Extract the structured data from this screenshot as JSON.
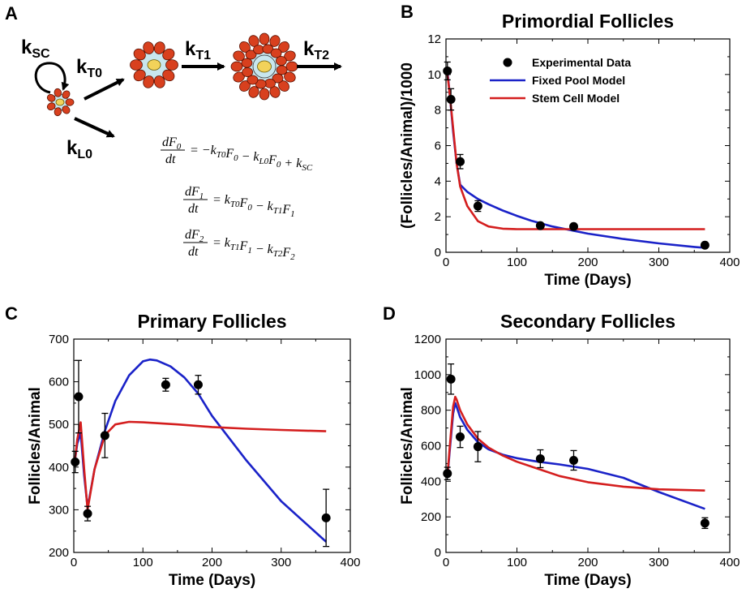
{
  "panel_a": {
    "label": "A",
    "rates": {
      "ksc": {
        "k": "k",
        "sub": "SC"
      },
      "kt0": {
        "k": "k",
        "sub": "T0"
      },
      "kt1": {
        "k": "k",
        "sub": "T1"
      },
      "kt2": {
        "k": "k",
        "sub": "T2"
      },
      "kl0": {
        "k": "k",
        "sub": "L0"
      }
    },
    "equations": [
      {
        "lhs_num": "dF",
        "lhs_sub": "0",
        "lhs_den": "dt",
        "rhs": "= −k_{T0}F_0 − k_{L0}F_0 + k_{SC}"
      },
      {
        "lhs_num": "dF",
        "lhs_sub": "1",
        "lhs_den": "dt",
        "rhs": "= k_{T0}F_0 − k_{T1}F_1"
      },
      {
        "lhs_num": "dF",
        "lhs_sub": "2",
        "lhs_den": "dt",
        "rhs": "= k_{T1}F_1 − k_{T2}F_2"
      }
    ],
    "colors": {
      "granulosa": "#D8401E",
      "oocyte_ring": "#C8E6EE",
      "oocyte": "#F2D25A"
    }
  },
  "chart_data": [
    {
      "panel": "B",
      "type": "line",
      "title": "Primordial Follicles",
      "xlabel": "Time (Days)",
      "ylabel": "(Follicles/Animal)/1000",
      "xlim": [
        0,
        400
      ],
      "ylim": [
        0,
        12
      ],
      "xticks": [
        0,
        100,
        200,
        300,
        400
      ],
      "yticks": [
        0,
        2,
        4,
        6,
        8,
        10,
        12
      ],
      "legend": {
        "placement": "top-right",
        "entries": [
          "Experimental Data",
          "Fixed Pool Model",
          "Stem Cell Model"
        ]
      },
      "experimental": {
        "name": "Experimental Data",
        "x": [
          2,
          7,
          20,
          45,
          133,
          180,
          365
        ],
        "y": [
          10.2,
          8.6,
          5.1,
          2.6,
          1.5,
          1.45,
          0.4
        ],
        "err": [
          0.5,
          0.6,
          0.4,
          0.3,
          0.15,
          0.1,
          0.12
        ]
      },
      "series": [
        {
          "name": "Fixed Pool Model",
          "color": "#1A22C8",
          "x": [
            2,
            5,
            10,
            15,
            20,
            30,
            45,
            60,
            80,
            100,
            120,
            150,
            200,
            250,
            300,
            350,
            365
          ],
          "y": [
            10.2,
            9.0,
            6.8,
            5.0,
            3.8,
            3.4,
            3.0,
            2.7,
            2.35,
            2.05,
            1.78,
            1.45,
            1.05,
            0.75,
            0.5,
            0.3,
            0.25
          ]
        },
        {
          "name": "Stem Cell Model",
          "color": "#D41E1E",
          "x": [
            2,
            5,
            10,
            15,
            20,
            30,
            45,
            60,
            80,
            100,
            130,
            200,
            300,
            365
          ],
          "y": [
            10.0,
            9.0,
            7.0,
            5.0,
            3.7,
            2.6,
            1.75,
            1.45,
            1.33,
            1.3,
            1.3,
            1.3,
            1.3,
            1.3
          ]
        }
      ]
    },
    {
      "panel": "C",
      "type": "line",
      "title": "Primary Follicles",
      "xlabel": "Time (Days)",
      "ylabel": "Follicles/Animal",
      "xlim": [
        0,
        400
      ],
      "ylim": [
        200,
        700
      ],
      "xticks": [
        0,
        100,
        200,
        300,
        400
      ],
      "yticks": [
        200,
        300,
        400,
        500,
        600,
        700
      ],
      "experimental": {
        "name": "Experimental Data",
        "x": [
          2,
          7,
          20,
          45,
          133,
          180,
          365
        ],
        "y": [
          412,
          565,
          291,
          474,
          593,
          593,
          281
        ],
        "err": [
          25,
          85,
          17,
          52,
          15,
          22,
          67
        ]
      },
      "series": [
        {
          "name": "Fixed Pool Model",
          "color": "#1A22C8",
          "x": [
            2,
            5,
            10,
            15,
            20,
            30,
            45,
            60,
            80,
            100,
            110,
            120,
            140,
            160,
            180,
            200,
            250,
            300,
            365
          ],
          "y": [
            420,
            455,
            480,
            380,
            305,
            395,
            485,
            555,
            615,
            648,
            652,
            650,
            636,
            610,
            572,
            520,
            415,
            320,
            225
          ]
        },
        {
          "name": "Stem Cell Model",
          "color": "#D41E1E",
          "x": [
            2,
            5,
            10,
            15,
            20,
            30,
            45,
            60,
            80,
            100,
            150,
            200,
            250,
            300,
            365
          ],
          "y": [
            420,
            465,
            505,
            395,
            300,
            395,
            475,
            500,
            506,
            505,
            500,
            494,
            490,
            487,
            484
          ]
        }
      ]
    },
    {
      "panel": "D",
      "type": "line",
      "title": "Secondary Follicles",
      "xlabel": "Time (Days)",
      "ylabel": "Follicles/Animal",
      "xlim": [
        0,
        400
      ],
      "ylim": [
        0,
        1200
      ],
      "xticks": [
        0,
        100,
        200,
        300,
        400
      ],
      "yticks": [
        0,
        200,
        400,
        600,
        800,
        1000,
        1200
      ],
      "experimental": {
        "name": "Experimental Data",
        "x": [
          2,
          7,
          20,
          45,
          133,
          180,
          365
        ],
        "y": [
          444,
          975,
          650,
          595,
          527,
          518,
          165
        ],
        "err": [
          35,
          85,
          60,
          85,
          50,
          55,
          30
        ]
      },
      "series": [
        {
          "name": "Fixed Pool Model",
          "color": "#1A22C8",
          "x": [
            2,
            5,
            10,
            13,
            15,
            20,
            30,
            45,
            60,
            80,
            100,
            130,
            160,
            200,
            250,
            300,
            365
          ],
          "y": [
            420,
            560,
            780,
            840,
            820,
            760,
            690,
            620,
            580,
            550,
            530,
            510,
            495,
            470,
            420,
            340,
            245
          ]
        },
        {
          "name": "Stem Cell Model",
          "color": "#D41E1E",
          "x": [
            2,
            5,
            10,
            13,
            15,
            20,
            30,
            45,
            60,
            80,
            100,
            130,
            160,
            200,
            250,
            300,
            365
          ],
          "y": [
            430,
            580,
            820,
            875,
            860,
            800,
            720,
            640,
            590,
            545,
            510,
            470,
            430,
            395,
            370,
            355,
            348
          ]
        }
      ]
    }
  ]
}
